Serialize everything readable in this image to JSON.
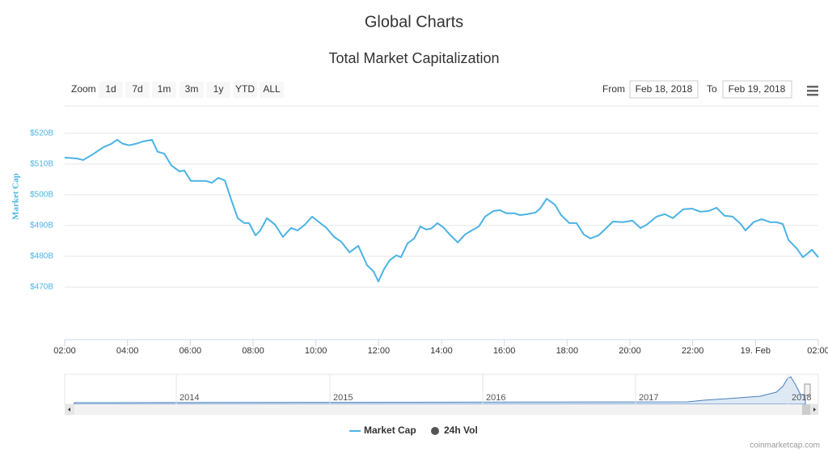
{
  "page": {
    "header": "Global Charts",
    "zoom_label": "Zoom",
    "zoom_buttons": [
      "1d",
      "7d",
      "1m",
      "3m",
      "1y",
      "YTD",
      "ALL"
    ],
    "from_label": "From",
    "from_date": "Feb 18, 2018",
    "to_label": "To",
    "to_date": "Feb 19, 2018",
    "credit": "coinmarketcap.com"
  },
  "chart_data": {
    "type": "line",
    "title": "Total Market Capitalization",
    "y_label": "Market Cap",
    "x": [
      2.0,
      2.39,
      2.59,
      2.9,
      3.24,
      3.49,
      3.67,
      3.85,
      4.06,
      4.27,
      4.52,
      4.78,
      4.96,
      5.17,
      5.4,
      5.66,
      5.81,
      6.02,
      6.25,
      6.51,
      6.69,
      6.89,
      7.1,
      7.31,
      7.51,
      7.72,
      7.87,
      8.08,
      8.23,
      8.44,
      8.7,
      8.95,
      9.21,
      9.42,
      9.65,
      9.88,
      10.14,
      10.34,
      10.58,
      10.81,
      11.07,
      11.35,
      11.63,
      11.84,
      11.99,
      12.17,
      12.35,
      12.56,
      12.71,
      12.92,
      13.13,
      13.33,
      13.51,
      13.67,
      13.87,
      14.05,
      14.26,
      14.52,
      14.75,
      14.93,
      15.19,
      15.39,
      15.65,
      15.86,
      16.06,
      16.32,
      16.5,
      16.73,
      16.99,
      17.14,
      17.35,
      17.61,
      17.81,
      18.07,
      18.3,
      18.53,
      18.74,
      19.0,
      19.25,
      19.46,
      19.77,
      20.08,
      20.34,
      20.54,
      20.85,
      21.11,
      21.37,
      21.7,
      21.98,
      22.24,
      22.5,
      22.76,
      23.01,
      23.27,
      23.53,
      23.68,
      23.94,
      24.2,
      24.46,
      24.66,
      24.87,
      25.05,
      25.31,
      25.51,
      25.8,
      26.0
    ],
    "series": [
      {
        "name": "Market Cap",
        "color": "#4bb3e4",
        "values": [
          512.1,
          511.8,
          511.3,
          513.2,
          515.5,
          516.6,
          517.9,
          516.6,
          516.1,
          516.6,
          517.4,
          517.9,
          514.0,
          513.4,
          509.5,
          507.6,
          507.9,
          504.5,
          504.5,
          504.5,
          503.9,
          505.5,
          504.7,
          498.2,
          492.4,
          490.8,
          490.8,
          486.8,
          488.4,
          492.4,
          490.3,
          486.3,
          489.2,
          488.4,
          490.3,
          492.9,
          490.8,
          489.2,
          486.3,
          484.7,
          481.3,
          483.4,
          477.1,
          475.0,
          471.8,
          475.8,
          478.7,
          480.3,
          479.7,
          484.2,
          485.8,
          489.7,
          488.7,
          489.0,
          490.8,
          489.5,
          487.1,
          484.5,
          487.1,
          488.2,
          489.7,
          492.9,
          494.7,
          495.0,
          494.0,
          494.0,
          493.4,
          493.7,
          494.2,
          495.5,
          498.7,
          496.8,
          493.4,
          490.8,
          490.8,
          487.1,
          485.8,
          486.8,
          489.2,
          491.3,
          491.1,
          491.6,
          489.2,
          490.3,
          492.9,
          493.7,
          492.4,
          495.3,
          495.5,
          494.5,
          494.7,
          495.8,
          493.2,
          492.9,
          490.5,
          488.4,
          491.1,
          492.1,
          491.1,
          491.1,
          490.5,
          485.3,
          482.6,
          479.7,
          482.1,
          479.7
        ]
      }
    ],
    "other_series": [
      {
        "name": "24h Vol",
        "color": "#555555"
      }
    ],
    "xlim": [
      2,
      26
    ],
    "xticks": [
      {
        "value": 2,
        "label": "02:00"
      },
      {
        "value": 4,
        "label": "04:00"
      },
      {
        "value": 6,
        "label": "06:00"
      },
      {
        "value": 8,
        "label": "08:00"
      },
      {
        "value": 10,
        "label": "10:00"
      },
      {
        "value": 12,
        "label": "12:00"
      },
      {
        "value": 14,
        "label": "14:00"
      },
      {
        "value": 16,
        "label": "16:00"
      },
      {
        "value": 18,
        "label": "18:00"
      },
      {
        "value": 20,
        "label": "20:00"
      },
      {
        "value": 22,
        "label": "22:00"
      },
      {
        "value": 24,
        "label": "19. Feb"
      },
      {
        "value": 26,
        "label": "02:00"
      }
    ],
    "ylim": [
      452.9,
      528.9
    ],
    "yticks": [
      {
        "value": 470,
        "label": "$470B"
      },
      {
        "value": 480,
        "label": "$480B"
      },
      {
        "value": 490,
        "label": "$490B"
      },
      {
        "value": 500,
        "label": "$500B"
      },
      {
        "value": 510,
        "label": "$510B"
      },
      {
        "value": 520,
        "label": "$520B"
      }
    ],
    "grid": true,
    "navigator_labels": [
      "2014",
      "2015",
      "2016",
      "2017",
      "2018"
    ]
  }
}
